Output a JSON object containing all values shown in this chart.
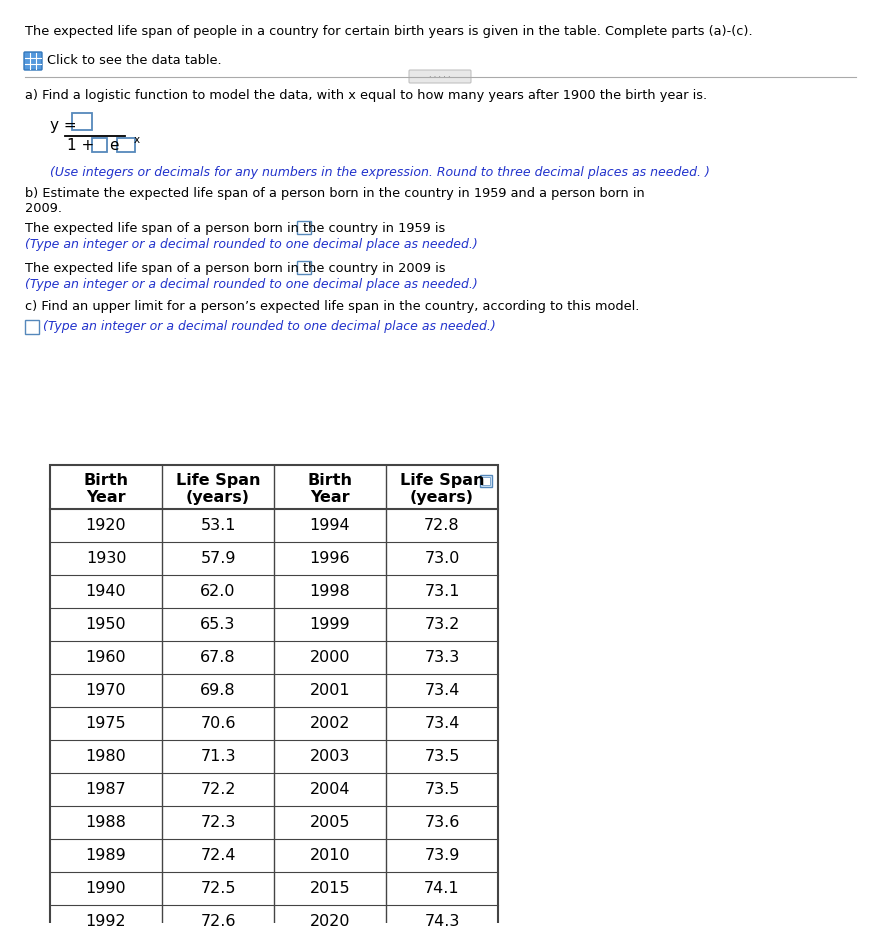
{
  "title_text": "The expected life span of people in a country for certain birth years is given in the table. Complete parts (a)-(c).",
  "click_text": "Click to see the data table.",
  "part_a_label": "a) Find a logistic function to model the data, with x equal to how many years after 1900 the birth year is.",
  "formula_note": "(Use integers or decimals for any numbers in the expression. Round to three decimal places as needed. )",
  "part_b_label1": "b) Estimate the expected life span of a person born in the country in 1959 and a person born in",
  "part_b_label2": "2009.",
  "part_b_1959": "The expected life span of a person born in the country in 1959 is",
  "part_b_1959_note": "(Type an integer or a decimal rounded to one decimal place as needed.)",
  "part_b_2009": "The expected life span of a person born in the country in 2009 is",
  "part_b_2009_note": "(Type an integer or a decimal rounded to one decimal place as needed.)",
  "part_c_label": "c) Find an upper limit for a person’s expected life span in the country, according to this model.",
  "part_c_note": "(Type an integer or a decimal rounded to one decimal place as needed.)",
  "table_col1_header": [
    "Birth",
    "Year"
  ],
  "table_col2_header": [
    "Life Span",
    "(years)"
  ],
  "table_col3_header": [
    "Birth",
    "Year"
  ],
  "table_col4_header": [
    "Life Span",
    "(years)"
  ],
  "table_left": [
    [
      "1920",
      "53.1"
    ],
    [
      "1930",
      "57.9"
    ],
    [
      "1940",
      "62.0"
    ],
    [
      "1950",
      "65.3"
    ],
    [
      "1960",
      "67.8"
    ],
    [
      "1970",
      "69.8"
    ],
    [
      "1975",
      "70.6"
    ],
    [
      "1980",
      "71.3"
    ],
    [
      "1987",
      "72.2"
    ],
    [
      "1988",
      "72.3"
    ],
    [
      "1989",
      "72.4"
    ],
    [
      "1990",
      "72.5"
    ],
    [
      "1992",
      "72.6"
    ]
  ],
  "table_right": [
    [
      "1994",
      "72.8"
    ],
    [
      "1996",
      "73.0"
    ],
    [
      "1998",
      "73.1"
    ],
    [
      "1999",
      "73.2"
    ],
    [
      "2000",
      "73.3"
    ],
    [
      "2001",
      "73.4"
    ],
    [
      "2002",
      "73.4"
    ],
    [
      "2003",
      "73.5"
    ],
    [
      "2004",
      "73.5"
    ],
    [
      "2005",
      "73.6"
    ],
    [
      "2010",
      "73.9"
    ],
    [
      "2015",
      "74.1"
    ],
    [
      "2020",
      "74.3"
    ]
  ],
  "bg_color": "#ffffff",
  "text_color": "#000000",
  "blue_color": "#2233cc",
  "box_border": "#5588bb",
  "grid_color": "#444444",
  "icon_color": "#4488cc"
}
